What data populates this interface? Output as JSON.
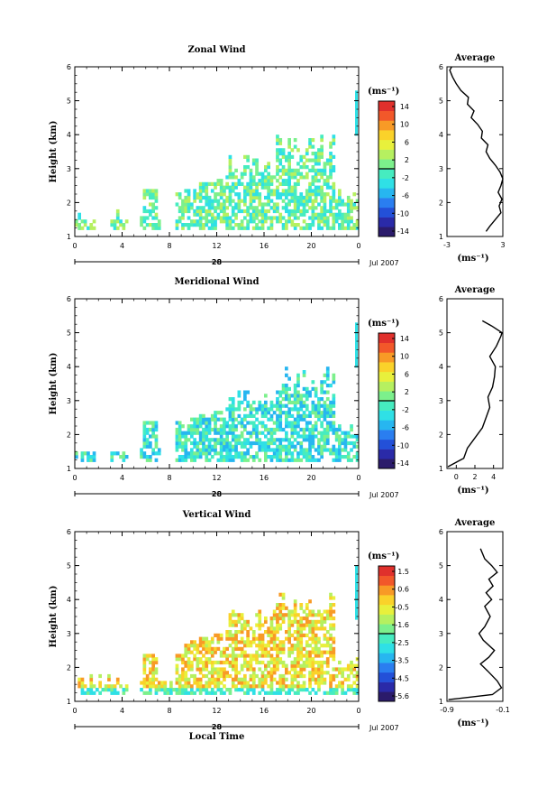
{
  "panels": [
    {
      "title": "Zonal Wind",
      "ylabel": "Height (km)",
      "unit": "(ms⁻¹)",
      "colorbar_ticks": [
        "14",
        "10",
        "6",
        "2",
        "-2",
        "-6",
        "-10",
        "-14"
      ],
      "avg_title": "Average",
      "avg_xticks": [
        "-3",
        "3"
      ],
      "avg_xrange": [
        -3,
        3
      ],
      "date": "Jul 2007",
      "day": "28",
      "xticks": [
        "0",
        "4",
        "8",
        "12",
        "16",
        "20",
        "0"
      ]
    },
    {
      "title": "Meridional Wind",
      "ylabel": "Height (km)",
      "unit": "(ms⁻¹)",
      "colorbar_ticks": [
        "14",
        "10",
        "6",
        "2",
        "-2",
        "-6",
        "-10",
        "-14"
      ],
      "avg_title": "Average",
      "avg_xticks": [
        "0",
        "2",
        "4"
      ],
      "avg_xrange": [
        -1,
        5
      ],
      "date": "Jul 2007",
      "day": "28",
      "xticks": [
        "0",
        "4",
        "8",
        "12",
        "16",
        "20",
        "0"
      ]
    },
    {
      "title": "Vertical Wind",
      "ylabel": "Height (km)",
      "unit": "(ms⁻¹)",
      "colorbar_ticks": [
        "1.5",
        "0.6",
        "-0.5",
        "-1.6",
        "-2.5",
        "-3.5",
        "-4.5",
        "-5.6"
      ],
      "avg_title": "Average",
      "avg_xticks": [
        "-0.9",
        "-0.1"
      ],
      "avg_xrange": [
        -0.9,
        -0.1
      ],
      "date": "Jul 2007",
      "day": "28",
      "xticks": [
        "0",
        "4",
        "8",
        "12",
        "16",
        "20",
        "0"
      ],
      "xlabel": "Local Time"
    }
  ],
  "avg_xlabel": "(ms⁻¹)",
  "yticks": [
    "1",
    "2",
    "3",
    "4",
    "5",
    "6"
  ],
  "colors": {
    "colormap": [
      "#2b1b6b",
      "#2a2aa8",
      "#2350d8",
      "#2a7ef0",
      "#27b6f0",
      "#2fe0e6",
      "#46ecc0",
      "#7cf08c",
      "#b6f060",
      "#e8f03c",
      "#fad22a",
      "#f89a26",
      "#f2582a",
      "#e0302c"
    ]
  },
  "chart_data": [
    {
      "type": "heatmap",
      "title": "Zonal Wind",
      "xlabel": "",
      "ylabel": "Height (km)",
      "xlim": [
        0,
        24
      ],
      "ylim": [
        1,
        6
      ],
      "colorbar_range": [
        -14,
        14
      ],
      "average_profile": {
        "height": [
          1.15,
          1.3,
          1.5,
          1.7,
          1.9,
          2.1,
          2.3,
          2.5,
          2.7,
          2.9,
          3.1,
          3.3,
          3.5,
          3.7,
          3.9,
          4.1,
          4.3,
          4.5,
          4.7,
          4.9,
          5.1,
          5.3,
          5.5,
          5.7,
          5.9,
          6.0
        ],
        "value": [
          1.2,
          1.6,
          2.2,
          2.8,
          2.6,
          2.9,
          2.5,
          2.8,
          3.0,
          2.7,
          2.2,
          1.6,
          1.2,
          1.4,
          0.7,
          0.8,
          0.3,
          -0.4,
          -0.1,
          -0.8,
          -0.7,
          -1.5,
          -2.0,
          -2.4,
          -2.7,
          -2.5
        ]
      }
    },
    {
      "type": "heatmap",
      "title": "Meridional Wind",
      "xlabel": "",
      "ylabel": "Height (km)",
      "xlim": [
        0,
        24
      ],
      "ylim": [
        1,
        6
      ],
      "colorbar_range": [
        -14,
        14
      ],
      "average_profile": {
        "height": [
          1.05,
          1.3,
          1.6,
          1.9,
          2.2,
          2.5,
          2.8,
          3.1,
          3.4,
          3.7,
          4.0,
          4.3,
          4.6,
          4.9,
          5.0,
          5.2,
          5.35
        ],
        "value": [
          -0.9,
          0.8,
          1.2,
          2.0,
          2.8,
          3.2,
          3.6,
          3.4,
          3.9,
          4.1,
          4.2,
          3.6,
          4.3,
          4.8,
          4.9,
          3.8,
          2.8
        ]
      }
    },
    {
      "type": "heatmap",
      "title": "Vertical Wind",
      "xlabel": "Local Time",
      "ylabel": "Height (km)",
      "xlim": [
        0,
        24
      ],
      "ylim": [
        1,
        6
      ],
      "colorbar_range": [
        -5.6,
        1.5
      ],
      "average_profile": {
        "height": [
          1.05,
          1.2,
          1.4,
          1.6,
          1.9,
          2.1,
          2.3,
          2.5,
          2.8,
          3.0,
          3.2,
          3.5,
          3.8,
          4.0,
          4.2,
          4.4,
          4.6,
          4.8,
          5.0,
          5.2,
          5.5
        ],
        "value": [
          -0.88,
          -0.25,
          -0.12,
          -0.18,
          -0.32,
          -0.42,
          -0.3,
          -0.22,
          -0.38,
          -0.44,
          -0.36,
          -0.28,
          -0.36,
          -0.26,
          -0.34,
          -0.24,
          -0.3,
          -0.18,
          -0.26,
          -0.36,
          -0.42
        ]
      }
    }
  ]
}
